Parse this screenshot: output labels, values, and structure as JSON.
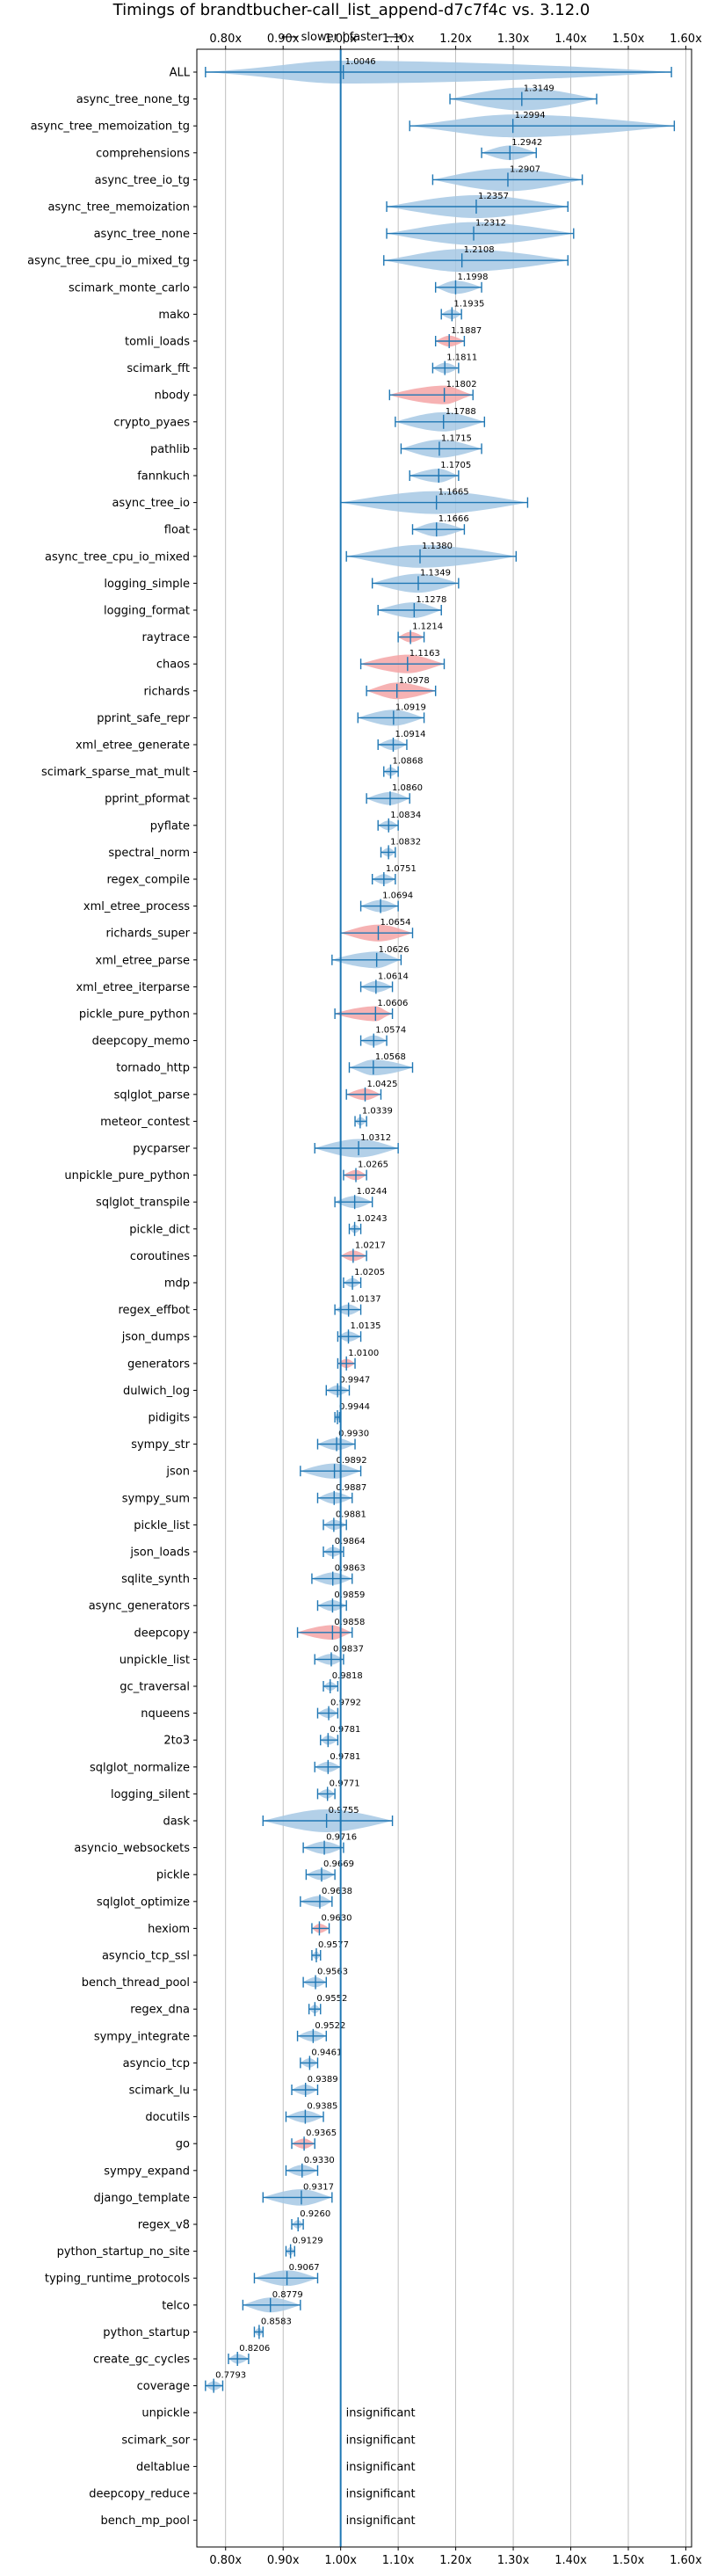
{
  "chart_data": {
    "type": "violin",
    "title": "Timings of brandtbucher-call_list_append-d7c7f4c vs. 3.12.0",
    "direction_label": "⟵ slower | faster ⟶",
    "xlim": [
      0.75,
      1.61
    ],
    "xticks": [
      0.8,
      0.9,
      1.0,
      1.1,
      1.2,
      1.3,
      1.4,
      1.5,
      1.6
    ],
    "xtick_labels": [
      "0.80x",
      "0.90x",
      "1.00x",
      "1.10x",
      "1.20x",
      "1.30x",
      "1.40x",
      "1.50x",
      "1.60x"
    ],
    "reference_line": 1.0,
    "colors": {
      "normal": "#1f77b4",
      "highlight": "#d62728",
      "grid": "#b0b0b0"
    },
    "insignificant_text": "insignificant",
    "benchmarks": [
      {
        "name": "ALL",
        "value": 1.0046,
        "label": "1.0046",
        "lo": 0.765,
        "hi": 1.575
      },
      {
        "name": "async_tree_none_tg",
        "value": 1.3149,
        "label": "1.3149",
        "lo": 1.19,
        "hi": 1.445
      },
      {
        "name": "async_tree_memoization_tg",
        "value": 1.2994,
        "label": "1.2994",
        "lo": 1.12,
        "hi": 1.58
      },
      {
        "name": "comprehensions",
        "value": 1.2942,
        "label": "1.2942",
        "lo": 1.245,
        "hi": 1.34
      },
      {
        "name": "async_tree_io_tg",
        "value": 1.2907,
        "label": "1.2907",
        "lo": 1.16,
        "hi": 1.42
      },
      {
        "name": "async_tree_memoization",
        "value": 1.2357,
        "label": "1.2357",
        "lo": 1.08,
        "hi": 1.395
      },
      {
        "name": "async_tree_none",
        "value": 1.2312,
        "label": "1.2312",
        "lo": 1.08,
        "hi": 1.405
      },
      {
        "name": "async_tree_cpu_io_mixed_tg",
        "value": 1.2108,
        "label": "1.2108",
        "lo": 1.075,
        "hi": 1.395
      },
      {
        "name": "scimark_monte_carlo",
        "value": 1.1998,
        "label": "1.1998",
        "lo": 1.165,
        "hi": 1.245
      },
      {
        "name": "mako",
        "value": 1.1935,
        "label": "1.1935",
        "lo": 1.175,
        "hi": 1.21
      },
      {
        "name": "tomli_loads",
        "value": 1.1887,
        "label": "1.1887",
        "lo": 1.165,
        "hi": 1.215,
        "highlight": true
      },
      {
        "name": "scimark_fft",
        "value": 1.1811,
        "label": "1.1811",
        "lo": 1.16,
        "hi": 1.205
      },
      {
        "name": "nbody",
        "value": 1.1802,
        "label": "1.1802",
        "lo": 1.085,
        "hi": 1.23,
        "highlight": true
      },
      {
        "name": "crypto_pyaes",
        "value": 1.1788,
        "label": "1.1788",
        "lo": 1.095,
        "hi": 1.25
      },
      {
        "name": "pathlib",
        "value": 1.1715,
        "label": "1.1715",
        "lo": 1.105,
        "hi": 1.245
      },
      {
        "name": "fannkuch",
        "value": 1.1705,
        "label": "1.1705",
        "lo": 1.12,
        "hi": 1.205
      },
      {
        "name": "async_tree_io",
        "value": 1.1665,
        "label": "1.1665",
        "lo": 1.0,
        "hi": 1.325
      },
      {
        "name": "float",
        "value": 1.1666,
        "label": "1.1666",
        "lo": 1.125,
        "hi": 1.215
      },
      {
        "name": "async_tree_cpu_io_mixed",
        "value": 1.138,
        "label": "1.1380",
        "lo": 1.01,
        "hi": 1.305
      },
      {
        "name": "logging_simple",
        "value": 1.1349,
        "label": "1.1349",
        "lo": 1.055,
        "hi": 1.205
      },
      {
        "name": "logging_format",
        "value": 1.1278,
        "label": "1.1278",
        "lo": 1.065,
        "hi": 1.175
      },
      {
        "name": "raytrace",
        "value": 1.1214,
        "label": "1.1214",
        "lo": 1.1,
        "hi": 1.145,
        "highlight": true
      },
      {
        "name": "chaos",
        "value": 1.1163,
        "label": "1.1163",
        "lo": 1.035,
        "hi": 1.18,
        "highlight": true
      },
      {
        "name": "richards",
        "value": 1.0978,
        "label": "1.0978",
        "lo": 1.045,
        "hi": 1.165,
        "highlight": true
      },
      {
        "name": "pprint_safe_repr",
        "value": 1.0919,
        "label": "1.0919",
        "lo": 1.03,
        "hi": 1.145
      },
      {
        "name": "xml_etree_generate",
        "value": 1.0914,
        "label": "1.0914",
        "lo": 1.065,
        "hi": 1.115
      },
      {
        "name": "scimark_sparse_mat_mult",
        "value": 1.0868,
        "label": "1.0868",
        "lo": 1.075,
        "hi": 1.1
      },
      {
        "name": "pprint_pformat",
        "value": 1.086,
        "label": "1.0860",
        "lo": 1.045,
        "hi": 1.12
      },
      {
        "name": "pyflate",
        "value": 1.0834,
        "label": "1.0834",
        "lo": 1.065,
        "hi": 1.1
      },
      {
        "name": "spectral_norm",
        "value": 1.0832,
        "label": "1.0832",
        "lo": 1.07,
        "hi": 1.095
      },
      {
        "name": "regex_compile",
        "value": 1.0751,
        "label": "1.0751",
        "lo": 1.055,
        "hi": 1.095
      },
      {
        "name": "xml_etree_process",
        "value": 1.0694,
        "label": "1.0694",
        "lo": 1.035,
        "hi": 1.1
      },
      {
        "name": "richards_super",
        "value": 1.0654,
        "label": "1.0654",
        "lo": 1.0,
        "hi": 1.125,
        "highlight": true
      },
      {
        "name": "xml_etree_parse",
        "value": 1.0626,
        "label": "1.0626",
        "lo": 0.985,
        "hi": 1.105
      },
      {
        "name": "xml_etree_iterparse",
        "value": 1.0614,
        "label": "1.0614",
        "lo": 1.035,
        "hi": 1.09
      },
      {
        "name": "pickle_pure_python",
        "value": 1.0606,
        "label": "1.0606",
        "lo": 0.99,
        "hi": 1.09,
        "highlight": true
      },
      {
        "name": "deepcopy_memo",
        "value": 1.0574,
        "label": "1.0574",
        "lo": 1.035,
        "hi": 1.08
      },
      {
        "name": "tornado_http",
        "value": 1.0568,
        "label": "1.0568",
        "lo": 1.015,
        "hi": 1.125
      },
      {
        "name": "sqlglot_parse",
        "value": 1.0425,
        "label": "1.0425",
        "lo": 1.01,
        "hi": 1.07,
        "highlight": true
      },
      {
        "name": "meteor_contest",
        "value": 1.0339,
        "label": "1.0339",
        "lo": 1.025,
        "hi": 1.045
      },
      {
        "name": "pycparser",
        "value": 1.0312,
        "label": "1.0312",
        "lo": 0.955,
        "hi": 1.1
      },
      {
        "name": "unpickle_pure_python",
        "value": 1.0265,
        "label": "1.0265",
        "lo": 1.005,
        "hi": 1.045,
        "highlight": true
      },
      {
        "name": "sqlglot_transpile",
        "value": 1.0244,
        "label": "1.0244",
        "lo": 0.99,
        "hi": 1.055
      },
      {
        "name": "pickle_dict",
        "value": 1.0243,
        "label": "1.0243",
        "lo": 1.015,
        "hi": 1.035
      },
      {
        "name": "coroutines",
        "value": 1.0217,
        "label": "1.0217",
        "lo": 1.0,
        "hi": 1.045,
        "highlight": true
      },
      {
        "name": "mdp",
        "value": 1.0205,
        "label": "1.0205",
        "lo": 1.005,
        "hi": 1.035
      },
      {
        "name": "regex_effbot",
        "value": 1.0137,
        "label": "1.0137",
        "lo": 0.99,
        "hi": 1.035
      },
      {
        "name": "json_dumps",
        "value": 1.0135,
        "label": "1.0135",
        "lo": 0.995,
        "hi": 1.035
      },
      {
        "name": "generators",
        "value": 1.01,
        "label": "1.0100",
        "lo": 0.995,
        "hi": 1.025,
        "highlight": true
      },
      {
        "name": "dulwich_log",
        "value": 0.9947,
        "label": "0.9947",
        "lo": 0.975,
        "hi": 1.015
      },
      {
        "name": "pidigits",
        "value": 0.9944,
        "label": "0.9944",
        "lo": 0.99,
        "hi": 0.998
      },
      {
        "name": "sympy_str",
        "value": 0.993,
        "label": "0.9930",
        "lo": 0.96,
        "hi": 1.025
      },
      {
        "name": "json",
        "value": 0.9892,
        "label": "0.9892",
        "lo": 0.93,
        "hi": 1.035
      },
      {
        "name": "sympy_sum",
        "value": 0.9887,
        "label": "0.9887",
        "lo": 0.96,
        "hi": 1.02
      },
      {
        "name": "pickle_list",
        "value": 0.9881,
        "label": "0.9881",
        "lo": 0.97,
        "hi": 1.01
      },
      {
        "name": "json_loads",
        "value": 0.9864,
        "label": "0.9864",
        "lo": 0.97,
        "hi": 1.005
      },
      {
        "name": "sqlite_synth",
        "value": 0.9863,
        "label": "0.9863",
        "lo": 0.95,
        "hi": 1.02
      },
      {
        "name": "async_generators",
        "value": 0.9859,
        "label": "0.9859",
        "lo": 0.96,
        "hi": 1.01
      },
      {
        "name": "deepcopy",
        "value": 0.9858,
        "label": "0.9858",
        "lo": 0.925,
        "hi": 1.02,
        "highlight": true
      },
      {
        "name": "unpickle_list",
        "value": 0.9837,
        "label": "0.9837",
        "lo": 0.955,
        "hi": 1.005
      },
      {
        "name": "gc_traversal",
        "value": 0.9818,
        "label": "0.9818",
        "lo": 0.97,
        "hi": 0.995
      },
      {
        "name": "nqueens",
        "value": 0.9792,
        "label": "0.9792",
        "lo": 0.96,
        "hi": 0.995
      },
      {
        "name": "2to3",
        "value": 0.9781,
        "label": "0.9781",
        "lo": 0.965,
        "hi": 0.995
      },
      {
        "name": "sqlglot_normalize",
        "value": 0.9781,
        "label": "0.9781",
        "lo": 0.955,
        "hi": 1.0
      },
      {
        "name": "logging_silent",
        "value": 0.9771,
        "label": "0.9771",
        "lo": 0.96,
        "hi": 0.99
      },
      {
        "name": "dask",
        "value": 0.9755,
        "label": "0.9755",
        "lo": 0.865,
        "hi": 1.09
      },
      {
        "name": "asyncio_websockets",
        "value": 0.9716,
        "label": "0.9716",
        "lo": 0.935,
        "hi": 1.005
      },
      {
        "name": "pickle",
        "value": 0.9669,
        "label": "0.9669",
        "lo": 0.94,
        "hi": 0.99
      },
      {
        "name": "sqlglot_optimize",
        "value": 0.9638,
        "label": "0.9638",
        "lo": 0.93,
        "hi": 0.985
      },
      {
        "name": "hexiom",
        "value": 0.963,
        "label": "0.9630",
        "lo": 0.95,
        "hi": 0.98,
        "highlight": true
      },
      {
        "name": "asyncio_tcp_ssl",
        "value": 0.9577,
        "label": "0.9577",
        "lo": 0.95,
        "hi": 0.965
      },
      {
        "name": "bench_thread_pool",
        "value": 0.9563,
        "label": "0.9563",
        "lo": 0.935,
        "hi": 0.975
      },
      {
        "name": "regex_dna",
        "value": 0.9552,
        "label": "0.9552",
        "lo": 0.945,
        "hi": 0.965
      },
      {
        "name": "sympy_integrate",
        "value": 0.9522,
        "label": "0.9522",
        "lo": 0.925,
        "hi": 0.975
      },
      {
        "name": "asyncio_tcp",
        "value": 0.9461,
        "label": "0.9461",
        "lo": 0.93,
        "hi": 0.96
      },
      {
        "name": "scimark_lu",
        "value": 0.9389,
        "label": "0.9389",
        "lo": 0.915,
        "hi": 0.96
      },
      {
        "name": "docutils",
        "value": 0.9385,
        "label": "0.9385",
        "lo": 0.905,
        "hi": 0.97
      },
      {
        "name": "go",
        "value": 0.9365,
        "label": "0.9365",
        "lo": 0.915,
        "hi": 0.955,
        "highlight": true
      },
      {
        "name": "sympy_expand",
        "value": 0.933,
        "label": "0.9330",
        "lo": 0.905,
        "hi": 0.96
      },
      {
        "name": "django_template",
        "value": 0.9317,
        "label": "0.9317",
        "lo": 0.865,
        "hi": 0.985
      },
      {
        "name": "regex_v8",
        "value": 0.926,
        "label": "0.9260",
        "lo": 0.915,
        "hi": 0.935
      },
      {
        "name": "python_startup_no_site",
        "value": 0.9129,
        "label": "0.9129",
        "lo": 0.905,
        "hi": 0.92
      },
      {
        "name": "typing_runtime_protocols",
        "value": 0.9067,
        "label": "0.9067",
        "lo": 0.85,
        "hi": 0.96
      },
      {
        "name": "telco",
        "value": 0.8779,
        "label": "0.8779",
        "lo": 0.83,
        "hi": 0.93
      },
      {
        "name": "python_startup",
        "value": 0.8583,
        "label": "0.8583",
        "lo": 0.85,
        "hi": 0.865
      },
      {
        "name": "create_gc_cycles",
        "value": 0.8206,
        "label": "0.8206",
        "lo": 0.805,
        "hi": 0.84
      },
      {
        "name": "coverage",
        "value": 0.7793,
        "label": "0.7793",
        "lo": 0.765,
        "hi": 0.795
      },
      {
        "name": "unpickle",
        "insignificant": true
      },
      {
        "name": "scimark_sor",
        "insignificant": true
      },
      {
        "name": "deltablue",
        "insignificant": true
      },
      {
        "name": "deepcopy_reduce",
        "insignificant": true
      },
      {
        "name": "bench_mp_pool",
        "insignificant": true
      }
    ]
  }
}
